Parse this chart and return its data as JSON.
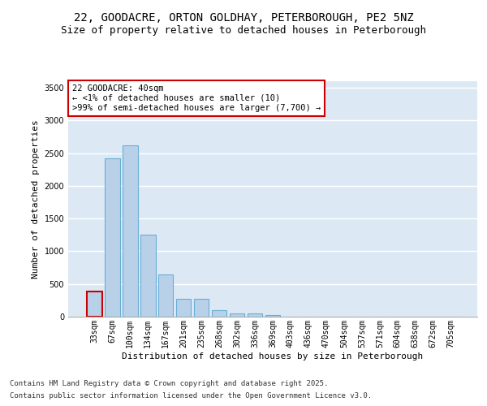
{
  "title_line1": "22, GOODACRE, ORTON GOLDHAY, PETERBOROUGH, PE2 5NZ",
  "title_line2": "Size of property relative to detached houses in Peterborough",
  "xlabel": "Distribution of detached houses by size in Peterborough",
  "ylabel": "Number of detached properties",
  "categories": [
    "33sqm",
    "67sqm",
    "100sqm",
    "134sqm",
    "167sqm",
    "201sqm",
    "235sqm",
    "268sqm",
    "302sqm",
    "336sqm",
    "369sqm",
    "403sqm",
    "436sqm",
    "470sqm",
    "504sqm",
    "537sqm",
    "571sqm",
    "604sqm",
    "638sqm",
    "672sqm",
    "705sqm"
  ],
  "values": [
    390,
    2420,
    2620,
    1250,
    640,
    275,
    275,
    105,
    55,
    45,
    30,
    0,
    0,
    0,
    0,
    0,
    0,
    0,
    0,
    0,
    0
  ],
  "bar_color": "#b8d0e8",
  "bar_edge_color": "#6aadd5",
  "highlight_edge_color": "#cc0000",
  "annotation_text": "22 GOODACRE: 40sqm\n← <1% of detached houses are smaller (10)\n>99% of semi-detached houses are larger (7,700) →",
  "annotation_box_color": "#ffffff",
  "annotation_edge_color": "#cc0000",
  "ylim": [
    0,
    3600
  ],
  "yticks": [
    0,
    500,
    1000,
    1500,
    2000,
    2500,
    3000,
    3500
  ],
  "background_color": "#ffffff",
  "plot_bg_color": "#dce9f5",
  "footer_line1": "Contains HM Land Registry data © Crown copyright and database right 2025.",
  "footer_line2": "Contains public sector information licensed under the Open Government Licence v3.0.",
  "grid_color": "#ffffff",
  "title_fontsize": 10,
  "subtitle_fontsize": 9,
  "axis_label_fontsize": 8,
  "tick_fontsize": 7,
  "annotation_fontsize": 7.5,
  "footer_fontsize": 6.5
}
